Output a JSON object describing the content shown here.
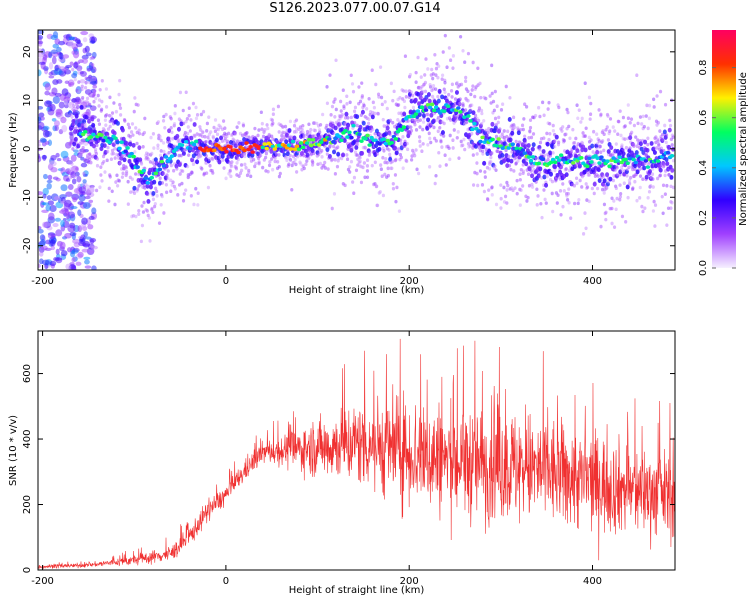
{
  "title": "S126.2023.077.00.07.G14",
  "chart_data": [
    {
      "type": "heatmap",
      "xlabel": "Height of straight line (km)",
      "ylabel": "Frequency (Hz)",
      "xlim": [
        -205,
        490
      ],
      "ylim": [
        -25,
        24.5
      ],
      "x_ticks": [
        -200,
        0,
        200,
        400
      ],
      "y_ticks": [
        -20,
        -10,
        0,
        10,
        20
      ],
      "colorbar": {
        "label": "Normalized spectral amplitude",
        "range": [
          0,
          0.95
        ],
        "ticks": [
          0.0,
          0.2,
          0.4,
          0.6,
          0.8
        ],
        "colormap": [
          "#f6f0ff",
          "#a040ff",
          "#3000ff",
          "#00c8ff",
          "#00ff60",
          "#fff000",
          "#ff3000",
          "#ff0060"
        ]
      },
      "ridge": {
        "x": [
          -170,
          -150,
          -130,
          -110,
          -95,
          -85,
          -75,
          -60,
          -45,
          -35,
          -25,
          0,
          50,
          100,
          120,
          140,
          160,
          180,
          190,
          200,
          215,
          230,
          250,
          265,
          280,
          300,
          320,
          340,
          380,
          420,
          460,
          490
        ],
        "y": [
          3.5,
          3,
          2.5,
          0,
          -4,
          -6.5,
          -5,
          -1,
          1,
          0.5,
          0,
          0,
          0.5,
          1,
          2.5,
          3.5,
          2,
          1,
          3.5,
          6.5,
          8.5,
          8,
          8,
          6.5,
          2,
          0.5,
          0,
          -2.5,
          -2.5,
          -2.5,
          -2.5,
          -1
        ]
      }
    },
    {
      "type": "line",
      "xlabel": "Height of straight line (km)",
      "ylabel": "SNR (10 * v/v)",
      "xlim": [
        -205,
        490
      ],
      "ylim": [
        0,
        730
      ],
      "x_ticks": [
        -200,
        0,
        200,
        400
      ],
      "y_ticks": [
        0,
        200,
        400,
        600
      ],
      "color": "#f03030",
      "envelope": {
        "x": [
          -205,
          -150,
          -100,
          -60,
          -40,
          -20,
          0,
          20,
          40,
          60,
          100,
          150,
          200,
          250,
          300,
          350,
          400,
          450,
          490
        ],
        "center": [
          10,
          15,
          30,
          50,
          100,
          180,
          230,
          300,
          360,
          365,
          375,
          390,
          360,
          330,
          320,
          300,
          270,
          240,
          230
        ],
        "spread": [
          8,
          8,
          20,
          30,
          40,
          40,
          40,
          40,
          40,
          60,
          110,
          170,
          210,
          220,
          220,
          210,
          190,
          170,
          160
        ]
      }
    }
  ]
}
